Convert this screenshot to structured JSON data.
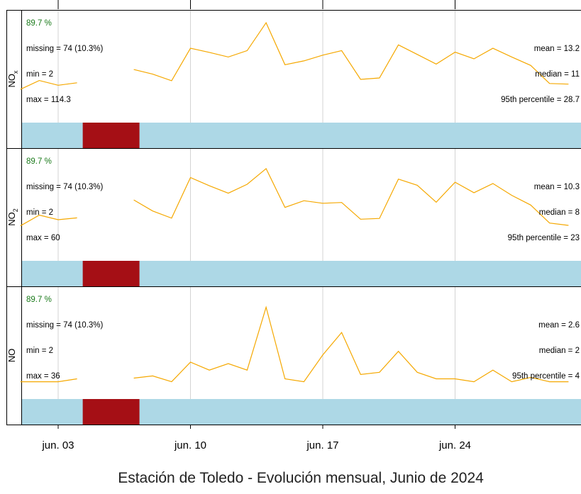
{
  "chart_data": {
    "type": "line",
    "title": "Estación de Toledo - Evolución mensual, Junio de 2024",
    "x_ticks": [
      {
        "day": 3,
        "label": "jun. 03"
      },
      {
        "day": 10,
        "label": "jun. 10"
      },
      {
        "day": 17,
        "label": "jun. 17"
      },
      {
        "day": 24,
        "label": "jun. 24"
      }
    ],
    "x_range_days": [
      1,
      30.6
    ],
    "missing_days": [
      4.3,
      7.3
    ],
    "colors": {
      "line": "#f5a800",
      "present_bar": "#add8e6",
      "missing_bar": "#a50f15",
      "stats_pct": "#1a7a1a",
      "grid": "#d3d3d3"
    },
    "panels": [
      {
        "name": "NO",
        "subscript": "x",
        "capture_pct": "89.7 %",
        "missing": "missing = 74 (10.3%)",
        "min": "min = 2",
        "max": "max = 114.3",
        "mean": "mean = 13.2",
        "median": "median = 11",
        "p95": "95th percentile = 28.7",
        "segments": [
          [
            [
              1,
              13.3
            ],
            [
              2,
              17.2
            ],
            [
              3,
              15.1
            ],
            [
              4,
              16.2
            ]
          ],
          [
            [
              7,
              22
            ],
            [
              8,
              20
            ],
            [
              9,
              17.1
            ],
            [
              10,
              31.3
            ],
            [
              11,
              29.5
            ],
            [
              12,
              27.5
            ],
            [
              13,
              30.3
            ],
            [
              14,
              42.5
            ],
            [
              15,
              24.1
            ],
            [
              16,
              25.8
            ],
            [
              17,
              28.3
            ],
            [
              18,
              30.3
            ],
            [
              19,
              17.7
            ],
            [
              20,
              18.3
            ],
            [
              21,
              32.8
            ],
            [
              22,
              28.6
            ],
            [
              23,
              24.4
            ],
            [
              24,
              29.6
            ],
            [
              25,
              26.7
            ],
            [
              26,
              31.3
            ],
            [
              27,
              27.5
            ],
            [
              28,
              23.8
            ],
            [
              29,
              15.9
            ],
            [
              30,
              15.6
            ]
          ]
        ]
      },
      {
        "name": "NO",
        "subscript": "2",
        "capture_pct": "89.7 %",
        "missing": "missing = 74 (10.3%)",
        "min": "min = 2",
        "max": "max = 60",
        "mean": "mean = 10.3",
        "median": "median = 8",
        "p95": "95th percentile = 23",
        "segments": [
          [
            [
              1,
              12.5
            ],
            [
              2,
              16.7
            ],
            [
              3,
              14.9
            ],
            [
              4,
              15.6
            ]
          ],
          [
            [
              7,
              22.6
            ],
            [
              8,
              18.3
            ],
            [
              9,
              15.5
            ],
            [
              10,
              31.3
            ],
            [
              11,
              28.1
            ],
            [
              12,
              25.2
            ],
            [
              13,
              28.7
            ],
            [
              14,
              34.8
            ],
            [
              15,
              19.7
            ],
            [
              16,
              22.3
            ],
            [
              17,
              21.3
            ],
            [
              18,
              21.6
            ],
            [
              19,
              15.1
            ],
            [
              20,
              15.4
            ],
            [
              21,
              30.7
            ],
            [
              22,
              28.3
            ],
            [
              23,
              21.7
            ],
            [
              24,
              29.5
            ],
            [
              25,
              25.4
            ],
            [
              26,
              29
            ],
            [
              27,
              24.4
            ],
            [
              28,
              20.6
            ],
            [
              29,
              13.6
            ],
            [
              30,
              12.7
            ]
          ]
        ]
      },
      {
        "name": "NO",
        "subscript": "",
        "capture_pct": "89.7 %",
        "missing": "missing = 74 (10.3%)",
        "min": "min = 2",
        "max": "max = 36",
        "mean": "mean = 2.6",
        "median": "median = 2",
        "p95": "95th percentile = 4",
        "segments": [
          [
            [
              1,
              2
            ],
            [
              2,
              2
            ],
            [
              3,
              2
            ],
            [
              4,
              2.4
            ]
          ],
          [
            [
              7,
              2.5
            ],
            [
              8,
              2.8
            ],
            [
              9,
              2
            ],
            [
              10,
              4.7
            ],
            [
              11,
              3.6
            ],
            [
              12,
              4.5
            ],
            [
              13,
              3.6
            ],
            [
              14,
              12.3
            ],
            [
              15,
              2.4
            ],
            [
              16,
              2
            ],
            [
              17,
              5.7
            ],
            [
              18,
              8.8
            ],
            [
              19,
              3
            ],
            [
              20,
              3.3
            ],
            [
              21,
              6.2
            ],
            [
              22,
              3.3
            ],
            [
              23,
              2.4
            ],
            [
              24,
              2.4
            ],
            [
              25,
              2
            ],
            [
              26,
              3.6
            ],
            [
              27,
              2
            ],
            [
              28,
              2.6
            ],
            [
              29,
              2
            ],
            [
              30,
              2
            ]
          ]
        ]
      }
    ],
    "y_ranges": [
      [
        0,
        45
      ],
      [
        0,
        40
      ],
      [
        0,
        14.2
      ]
    ]
  }
}
